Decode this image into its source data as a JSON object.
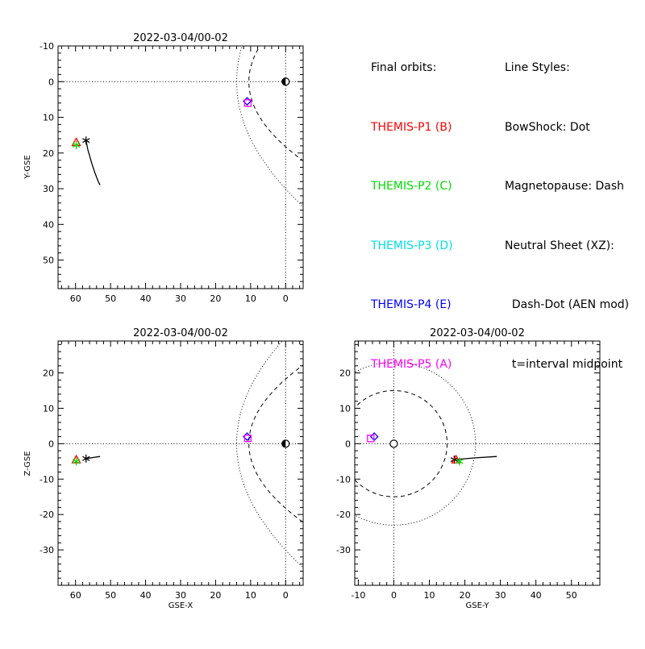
{
  "legend": {
    "orbits_title": "Final orbits:",
    "probes": [
      {
        "label": "THEMIS-P1 (B)",
        "color": "#ff0000"
      },
      {
        "label": "THEMIS-P2 (C)",
        "color": "#00dd00"
      },
      {
        "label": "THEMIS-P3 (D)",
        "color": "#00e0e0"
      },
      {
        "label": "THEMIS-P4 (E)",
        "color": "#0000ff"
      },
      {
        "label": "THEMIS-P5 (A)",
        "color": "#ff00ff"
      }
    ],
    "styles_title": "Line Styles:",
    "styles": [
      "BowShock: Dot",
      "Magnetopause: Dash",
      "Neutral Sheet (XZ):",
      "  Dash-Dot (AEN mod)",
      "  t=interval midpoint"
    ]
  },
  "chart_data": [
    {
      "type": "line",
      "title": "2022-03-04/00-02",
      "xlabel": "",
      "ylabel": "Y-GSE",
      "xlim": [
        65,
        -5
      ],
      "ylim": [
        -10,
        58
      ],
      "x_ticks": [
        60,
        50,
        40,
        30,
        20,
        10,
        0
      ],
      "x_tick_labels": [
        "60",
        "50",
        "40",
        "30",
        "20",
        "10",
        "0"
      ],
      "y_ticks": [
        -10,
        0,
        10,
        20,
        30,
        40,
        50
      ],
      "y_tick_labels": [
        "-10",
        "0",
        "10",
        "20",
        "30",
        "40",
        "50"
      ],
      "series": [
        {
          "color": "#000000",
          "style": "solid",
          "x": [
            57,
            56.5,
            55.5,
            54.5,
            53.5,
            53
          ],
          "y": [
            16.5,
            19,
            22.5,
            25.5,
            28,
            29
          ]
        }
      ],
      "markers": [
        {
          "symbol": "asterisk",
          "color": "#000000",
          "x": 57,
          "y": 16.5
        },
        {
          "symbol": "triangle",
          "color": "#ff0000",
          "x": 59.8,
          "y": 17
        },
        {
          "symbol": "asterisk",
          "color": "#00dd00",
          "x": 59.8,
          "y": 17.8
        },
        {
          "symbol": "diamond",
          "color": "#0000ff",
          "x": 11,
          "y": 5.5
        },
        {
          "symbol": "square",
          "color": "#ff00ff",
          "x": 10.8,
          "y": 6
        },
        {
          "symbol": "earth",
          "color": "#000000",
          "x": 0,
          "y": 0
        }
      ]
    },
    {
      "type": "line",
      "title": "2022-03-04/00-02",
      "xlabel": "GSE-X",
      "ylabel": "Z-GSE",
      "xlim": [
        65,
        -5
      ],
      "ylim": [
        -40,
        29
      ],
      "x_ticks": [
        60,
        50,
        40,
        30,
        20,
        10,
        0
      ],
      "x_tick_labels": [
        "60",
        "50",
        "40",
        "30",
        "20",
        "10",
        "0"
      ],
      "y_ticks": [
        20,
        10,
        0,
        -10,
        -20,
        -30
      ],
      "y_tick_labels": [
        "20",
        "10",
        "0",
        "-10",
        "-20",
        "-30"
      ],
      "series": [
        {
          "color": "#000000",
          "style": "solid",
          "x": [
            57,
            55,
            53
          ],
          "y": [
            -4.2,
            -3.9,
            -3.6
          ]
        }
      ],
      "markers": [
        {
          "symbol": "asterisk",
          "color": "#000000",
          "x": 57,
          "y": -4.2
        },
        {
          "symbol": "triangle",
          "color": "#ff0000",
          "x": 59.8,
          "y": -4.5
        },
        {
          "symbol": "asterisk",
          "color": "#00dd00",
          "x": 59.8,
          "y": -5
        },
        {
          "symbol": "diamond",
          "color": "#0000ff",
          "x": 11,
          "y": 2
        },
        {
          "symbol": "square",
          "color": "#ff00ff",
          "x": 10.8,
          "y": 1.5
        },
        {
          "symbol": "earth",
          "color": "#000000",
          "x": 0,
          "y": 0
        }
      ]
    },
    {
      "type": "line",
      "title": "2022-03-04/00-02",
      "xlabel": "GSE-Y",
      "ylabel": "",
      "xlim": [
        -11,
        58
      ],
      "ylim": [
        -40,
        29
      ],
      "x_ticks": [
        -10,
        0,
        10,
        20,
        30,
        40,
        50
      ],
      "x_tick_labels": [
        "-10",
        "0",
        "10",
        "20",
        "30",
        "40",
        "50"
      ],
      "y_ticks": [
        20,
        10,
        0,
        -10,
        -20,
        -30
      ],
      "y_tick_labels": [
        "20",
        "10",
        "0",
        "-10",
        "-20",
        "-30"
      ],
      "series": [
        {
          "color": "#000000",
          "style": "solid",
          "x": [
            17,
            23,
            29
          ],
          "y": [
            -4.5,
            -4,
            -3.6
          ]
        }
      ],
      "markers": [
        {
          "symbol": "asterisk",
          "color": "#000000",
          "x": 17,
          "y": -4.5
        },
        {
          "symbol": "triangle",
          "color": "#ff0000",
          "x": 17.5,
          "y": -4.5
        },
        {
          "symbol": "asterisk",
          "color": "#00dd00",
          "x": 18.5,
          "y": -5
        },
        {
          "symbol": "diamond",
          "color": "#0000ff",
          "x": -5.5,
          "y": 2
        },
        {
          "symbol": "square",
          "color": "#ff00ff",
          "x": -6.5,
          "y": 1.5
        },
        {
          "symbol": "earth-circle",
          "color": "#000000",
          "x": 0,
          "y": 0
        }
      ]
    }
  ]
}
